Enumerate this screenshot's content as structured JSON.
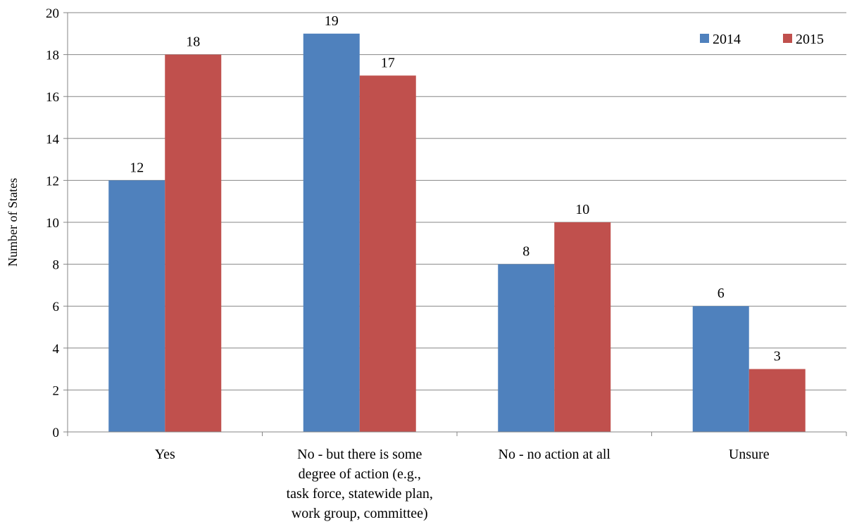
{
  "chart_data": {
    "type": "bar",
    "title": "",
    "xlabel": "",
    "ylabel": "Number of States",
    "ylim": [
      0,
      20
    ],
    "ytick_step": 2,
    "grid": true,
    "legend_position": "top-right",
    "categories": [
      [
        "Yes"
      ],
      [
        "No - but there is some",
        "degree of action (e.g.,",
        "task force, statewide plan,",
        "work group, committee)"
      ],
      [
        "No - no action at all"
      ],
      [
        "Unsure"
      ]
    ],
    "series": [
      {
        "name": "2014",
        "color": "#4f81bd",
        "values": [
          12,
          19,
          8,
          6
        ]
      },
      {
        "name": "2015",
        "color": "#c0504d",
        "values": [
          18,
          17,
          10,
          3
        ]
      }
    ]
  }
}
